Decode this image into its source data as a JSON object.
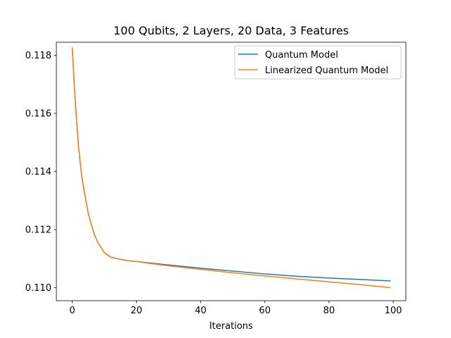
{
  "chart_data": {
    "type": "line",
    "title": "100 Qubits, 2 Layers, 20 Data, 3 Features",
    "xlabel": "Iterations",
    "ylabel": "",
    "xlim": [
      -4.95,
      103.95
    ],
    "ylim": [
      0.10955,
      0.11845
    ],
    "xticks": [
      0,
      20,
      40,
      60,
      80,
      100
    ],
    "xtick_labels": [
      "0",
      "20",
      "40",
      "60",
      "80",
      "100"
    ],
    "yticks": [
      0.11,
      0.112,
      0.114,
      0.116,
      0.118
    ],
    "ytick_labels": [
      "0.110",
      "0.112",
      "0.114",
      "0.116",
      "0.118"
    ],
    "grid": false,
    "legend_position": "top-right",
    "x": [
      0,
      1,
      2,
      3,
      4,
      5,
      6,
      7,
      8,
      10,
      12,
      14,
      16,
      18,
      20,
      25,
      30,
      40,
      50,
      60,
      70,
      80,
      90,
      99
    ],
    "series": [
      {
        "name": "Quantum Model",
        "color": "#1f77b4",
        "values": [
          0.11825,
          0.1163,
          0.1148,
          0.1138,
          0.11315,
          0.11255,
          0.11215,
          0.1118,
          0.11155,
          0.1112,
          0.11105,
          0.111,
          0.11095,
          0.11092,
          0.1109,
          0.11084,
          0.11078,
          0.11067,
          0.11057,
          0.11047,
          0.11039,
          0.11033,
          0.11028,
          0.11023
        ]
      },
      {
        "name": "Linearized Quantum Model",
        "color": "#ff7f0e",
        "values": [
          0.11825,
          0.1163,
          0.1148,
          0.1138,
          0.11315,
          0.11255,
          0.11215,
          0.1118,
          0.11155,
          0.1112,
          0.11105,
          0.111,
          0.11095,
          0.11092,
          0.1109,
          0.11082,
          0.11075,
          0.11063,
          0.11051,
          0.1104,
          0.1103,
          0.1102,
          0.1101,
          0.11
        ]
      }
    ]
  }
}
